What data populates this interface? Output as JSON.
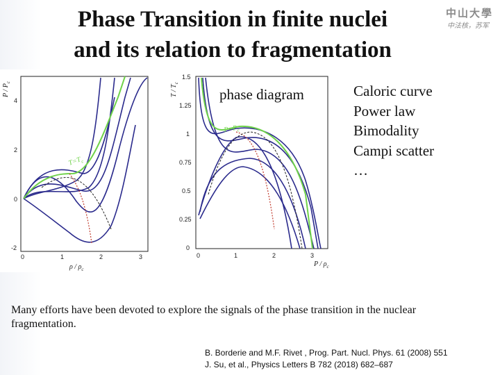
{
  "title": {
    "line1": "Phase Transition in finite nuclei",
    "line2": "and its relation to fragmentation"
  },
  "logo": {
    "line1": "中山大學",
    "line2": "中法核，苏军"
  },
  "figure": {
    "label": "phase diagram",
    "left_plot": {
      "ylabel": "P / P",
      "ylabel_sub": "c",
      "xlabel": "ρ / ρ",
      "xlabel_sub": "c",
      "y_ticks": [
        "4",
        "2",
        "0",
        "-2"
      ],
      "x_ticks": [
        "0",
        "1",
        "2",
        "3"
      ],
      "curve_label": "T=T",
      "curve_label_sub": "c"
    },
    "right_plot": {
      "ylabel": "T / T",
      "ylabel_sub": "c",
      "xlabel": "P / ρ",
      "xlabel_sub": "c",
      "y_ticks": [
        "1.5",
        "1.25",
        "1",
        "0.75",
        "0.5",
        "0.25",
        "0"
      ],
      "x_ticks": [
        "0",
        "1",
        "2",
        "3"
      ],
      "curve_label": "P=P",
      "curve_label_sub": "c"
    }
  },
  "signals": [
    "Caloric curve",
    "Power law",
    "Bimodality",
    "Campi scatter",
    "…"
  ],
  "paragraph": "Many efforts have been devoted to explore the signals of the phase transition in the nuclear fragmentation.",
  "references": [
    "B. Borderie and M.F. Rivet , Prog. Part. Nucl. Phys. 61 (2008) 551",
    "J. Su, et al., Physics Letters B 782 (2018) 682–687"
  ],
  "colors": {
    "isotherm": "#2a2a8c",
    "critical": "#6fd24a",
    "spinodal": "#c0392b"
  }
}
